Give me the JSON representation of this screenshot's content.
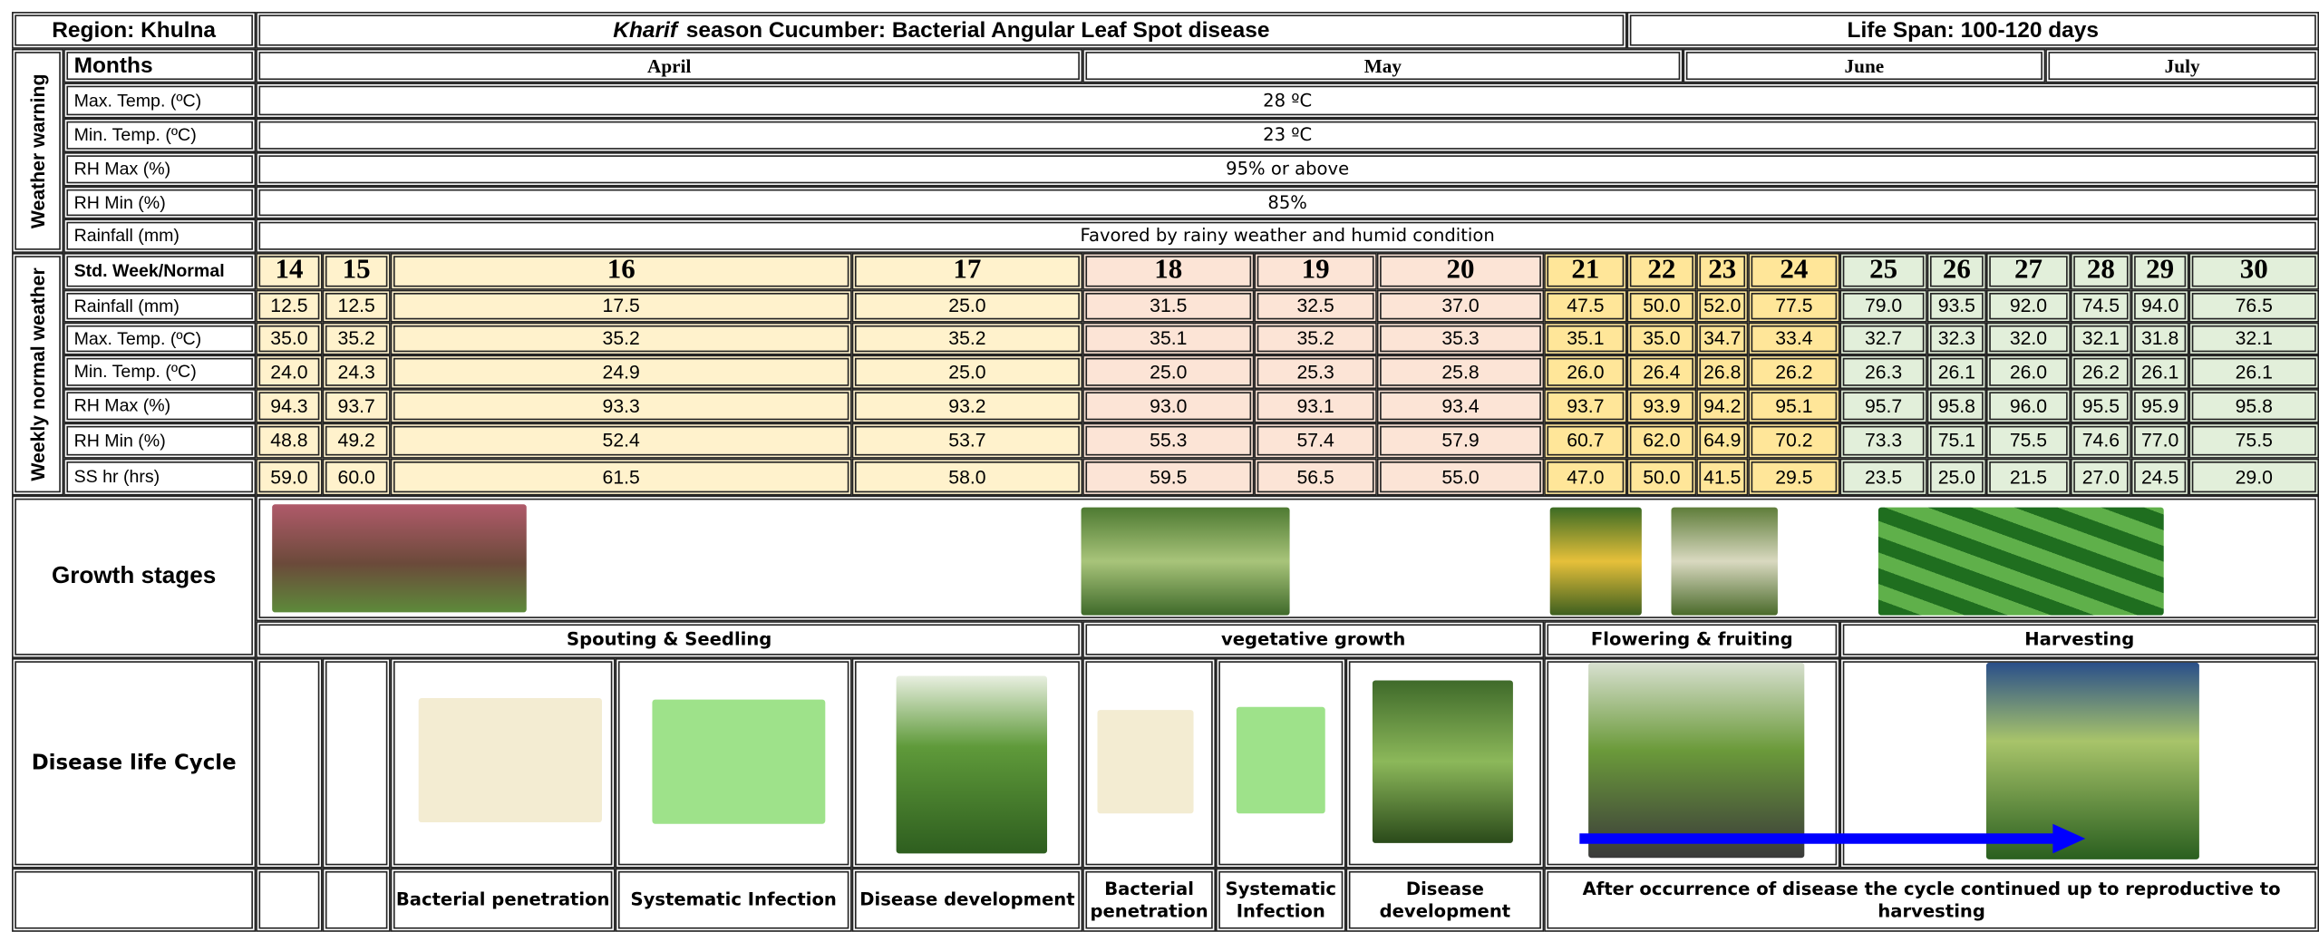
{
  "header": {
    "region": "Region: Khulna",
    "title_italic": "Kharif",
    "title": "season Cucumber: Bacterial Angular Leaf Spot disease",
    "life_span": "Life Span: 100-120 days"
  },
  "months": {
    "label": "Months",
    "items": [
      "April",
      "May",
      "June",
      "July"
    ]
  },
  "weather_warning": {
    "label": "Weather warning",
    "rows": [
      {
        "label": "Max. Temp. (ºC)",
        "value": "28 ºC"
      },
      {
        "label": "Min. Temp. (ºC)",
        "value": "23 ºC"
      },
      {
        "label": "RH Max (%)",
        "value": "95% or above"
      },
      {
        "label": "RH Min (%)",
        "value": "85%"
      },
      {
        "label": "Rainfall (mm)",
        "value": "Favored by rainy weather and humid condition"
      }
    ]
  },
  "weekly": {
    "label": "Weekly normal weather",
    "header": "Std. Week/Normal",
    "weeks": [
      14,
      15,
      16,
      17,
      18,
      19,
      20,
      21,
      22,
      23,
      24,
      25,
      26,
      27,
      28,
      29,
      30
    ],
    "rows": [
      {
        "label": "Rainfall (mm)",
        "values": [
          "12.5",
          "12.5",
          "17.5",
          "25.0",
          "31.5",
          "32.5",
          "37.0",
          "47.5",
          "50.0",
          "52.0",
          "77.5",
          "79.0",
          "93.5",
          "92.0",
          "74.5",
          "94.0",
          "76.5"
        ]
      },
      {
        "label": "Max. Temp. (ºC)",
        "values": [
          "35.0",
          "35.2",
          "35.2",
          "35.2",
          "35.1",
          "35.2",
          "35.3",
          "35.1",
          "35.0",
          "34.7",
          "33.4",
          "32.7",
          "32.3",
          "32.0",
          "32.1",
          "31.8",
          "32.1"
        ]
      },
      {
        "label": "Min. Temp. (ºC)",
        "values": [
          "24.0",
          "24.3",
          "24.9",
          "25.0",
          "25.0",
          "25.3",
          "25.8",
          "26.0",
          "26.4",
          "26.8",
          "26.2",
          "26.3",
          "26.1",
          "26.0",
          "26.2",
          "26.1",
          "26.1"
        ]
      },
      {
        "label": "RH Max (%)",
        "values": [
          "94.3",
          "93.7",
          "93.3",
          "93.2",
          "93.0",
          "93.1",
          "93.4",
          "93.7",
          "93.9",
          "94.2",
          "95.1",
          "95.7",
          "95.8",
          "96.0",
          "95.5",
          "95.9",
          "95.8"
        ]
      },
      {
        "label": "RH Min (%)",
        "values": [
          "48.8",
          "49.2",
          "52.4",
          "53.7",
          "55.3",
          "57.4",
          "57.9",
          "60.7",
          "62.0",
          "64.9",
          "70.2",
          "73.3",
          "75.1",
          "75.5",
          "74.6",
          "77.0",
          "75.5"
        ]
      },
      {
        "label": "SS hr (hrs)",
        "values": [
          "59.0",
          "60.0",
          "61.5",
          "58.0",
          "59.5",
          "56.5",
          "55.0",
          "47.0",
          "50.0",
          "41.5",
          "29.5",
          "23.5",
          "25.0",
          "21.5",
          "27.0",
          "24.5",
          "29.0"
        ]
      }
    ]
  },
  "growth": {
    "label": "Growth stages",
    "stages": [
      "Spouting & Seedling",
      "vegetative growth",
      "Flowering & fruiting",
      "Harvesting"
    ]
  },
  "disease": {
    "label": "Disease life Cycle",
    "captions": [
      "Bacterial penetration",
      "Systematic Infection",
      "Disease development",
      "Bacterial penetration",
      "Systematic Infection",
      "Disease development",
      "After occurrence of disease the cycle continued up to reproductive to harvesting"
    ]
  }
}
